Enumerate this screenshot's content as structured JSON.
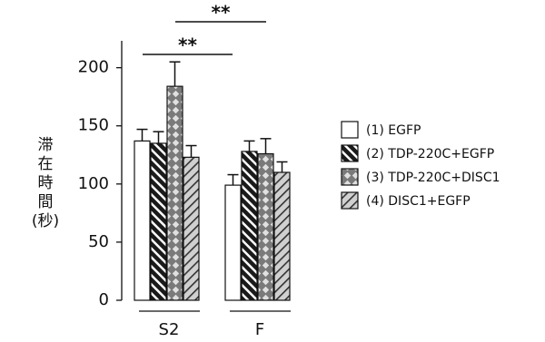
{
  "chart_data": {
    "type": "bar",
    "y_label": [
      "滞",
      "在",
      "時",
      "間",
      "(秒)"
    ],
    "categories": [
      "S2",
      "F"
    ],
    "series": [
      {
        "name": "(1)  EGFP",
        "color": "#ffffff",
        "pattern": "solid",
        "values": [
          137,
          99
        ],
        "errors": [
          10,
          9
        ]
      },
      {
        "name": "(2)  TDP-220C+EGFP",
        "color": "#1a1a1a",
        "pattern": "back-stripes",
        "values": [
          135,
          128
        ],
        "errors": [
          10,
          9
        ]
      },
      {
        "name": "(3)  TDP-220C+DISC1",
        "color": "#8c8c8c",
        "pattern": "diamonds",
        "values": [
          184,
          126
        ],
        "errors": [
          21,
          13
        ]
      },
      {
        "name": "(4)  DISC1+EGFP",
        "color": "#d0d0d0",
        "pattern": "fwd-stripes",
        "values": [
          123,
          110
        ],
        "errors": [
          10,
          9
        ]
      }
    ],
    "ylim": [
      0,
      220
    ],
    "yticks": [
      0,
      50,
      100,
      150,
      200
    ],
    "annotations": [
      {
        "label": "**"
      },
      {
        "label": "**"
      }
    ]
  }
}
